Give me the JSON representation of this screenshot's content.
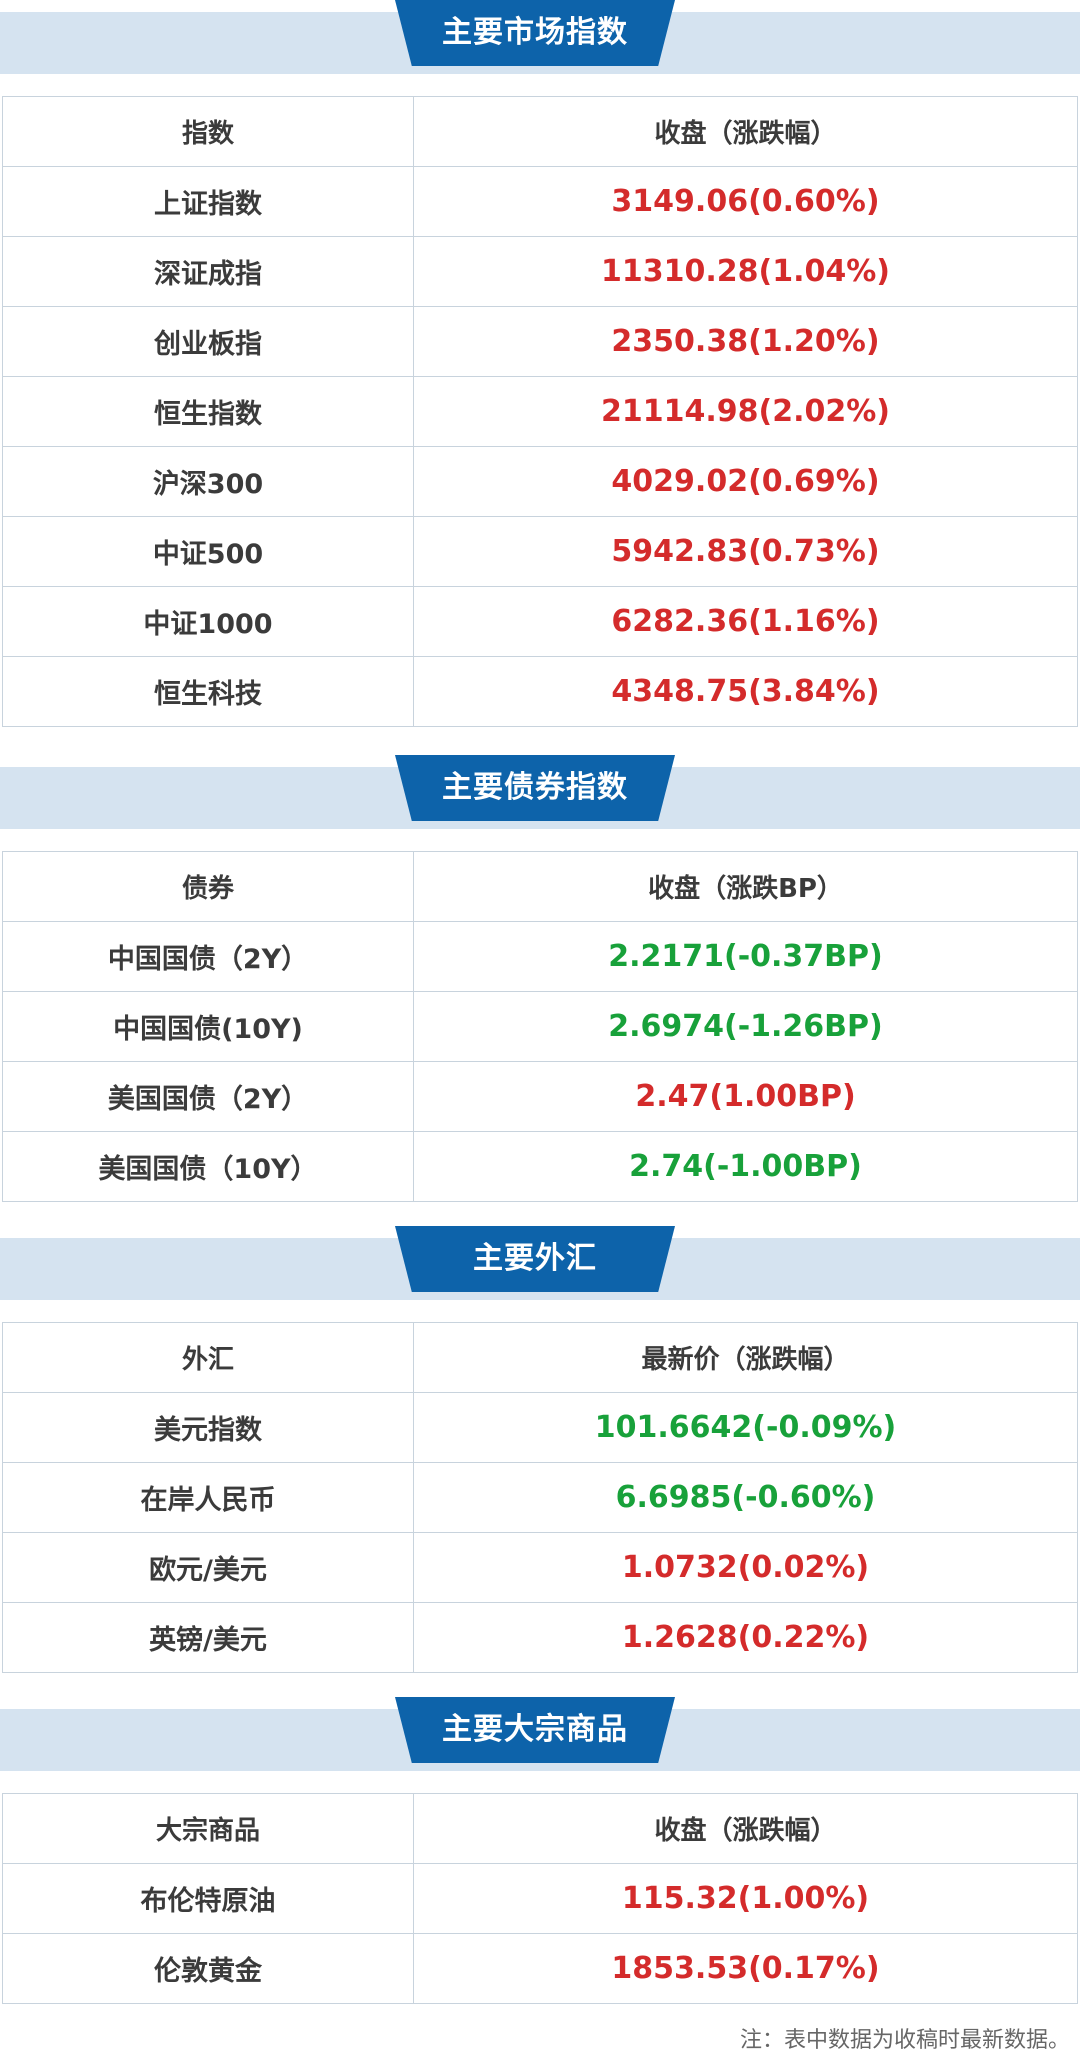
{
  "sections": [
    {
      "title": "主要市场指数",
      "header": [
        "指数",
        "收盘（涨跌幅）"
      ],
      "rows": [
        {
          "name": "上证指数",
          "value": "3149.06(0.60%)",
          "trend": "up"
        },
        {
          "name": "深证成指",
          "value": "11310.28(1.04%)",
          "trend": "up"
        },
        {
          "name": "创业板指",
          "value": "2350.38(1.20%)",
          "trend": "up"
        },
        {
          "name": "恒生指数",
          "value": "21114.98(2.02%)",
          "trend": "up"
        },
        {
          "name": "沪深300",
          "value": "4029.02(0.69%)",
          "trend": "up"
        },
        {
          "name": "中证500",
          "value": "5942.83(0.73%)",
          "trend": "up"
        },
        {
          "name": "中证1000",
          "value": "6282.36(1.16%)",
          "trend": "up"
        },
        {
          "name": "恒生科技",
          "value": "4348.75(3.84%)",
          "trend": "up"
        }
      ]
    },
    {
      "title": "主要债券指数",
      "header": [
        "债券",
        "收盘（涨跌BP）"
      ],
      "rows": [
        {
          "name": "中国国债（2Y）",
          "value": "2.2171(-0.37BP)",
          "trend": "down"
        },
        {
          "name": "中国国债(10Y)",
          "value": "2.6974(-1.26BP)",
          "trend": "down"
        },
        {
          "name": "美国国债（2Y）",
          "value": "2.47(1.00BP)",
          "trend": "up"
        },
        {
          "name": "美国国债（10Y）",
          "value": "2.74(-1.00BP)",
          "trend": "down"
        }
      ]
    },
    {
      "title": "主要外汇",
      "header": [
        "外汇",
        "最新价（涨跌幅）"
      ],
      "rows": [
        {
          "name": "美元指数",
          "value": "101.6642(-0.09%)",
          "trend": "down"
        },
        {
          "name": "在岸人民币",
          "value": "6.6985(-0.60%)",
          "trend": "down"
        },
        {
          "name": "欧元/美元",
          "value": "1.0732(0.02%)",
          "trend": "up"
        },
        {
          "name": "英镑/美元",
          "value": "1.2628(0.22%)",
          "trend": "up"
        }
      ]
    },
    {
      "title": "主要大宗商品",
      "header": [
        "大宗商品",
        "收盘（涨跌幅）"
      ],
      "rows": [
        {
          "name": "布伦特原油",
          "value": "115.32(1.00%)",
          "trend": "up"
        },
        {
          "name": "伦敦黄金",
          "value": "1853.53(0.17%)",
          "trend": "up"
        }
      ]
    }
  ],
  "colors": {
    "banner": "#0d63aa",
    "strip": "#d5e3f0",
    "up": "#d42b2b",
    "down": "#18a13a"
  },
  "footnote": "注：表中数据为收稿时最新数据。"
}
